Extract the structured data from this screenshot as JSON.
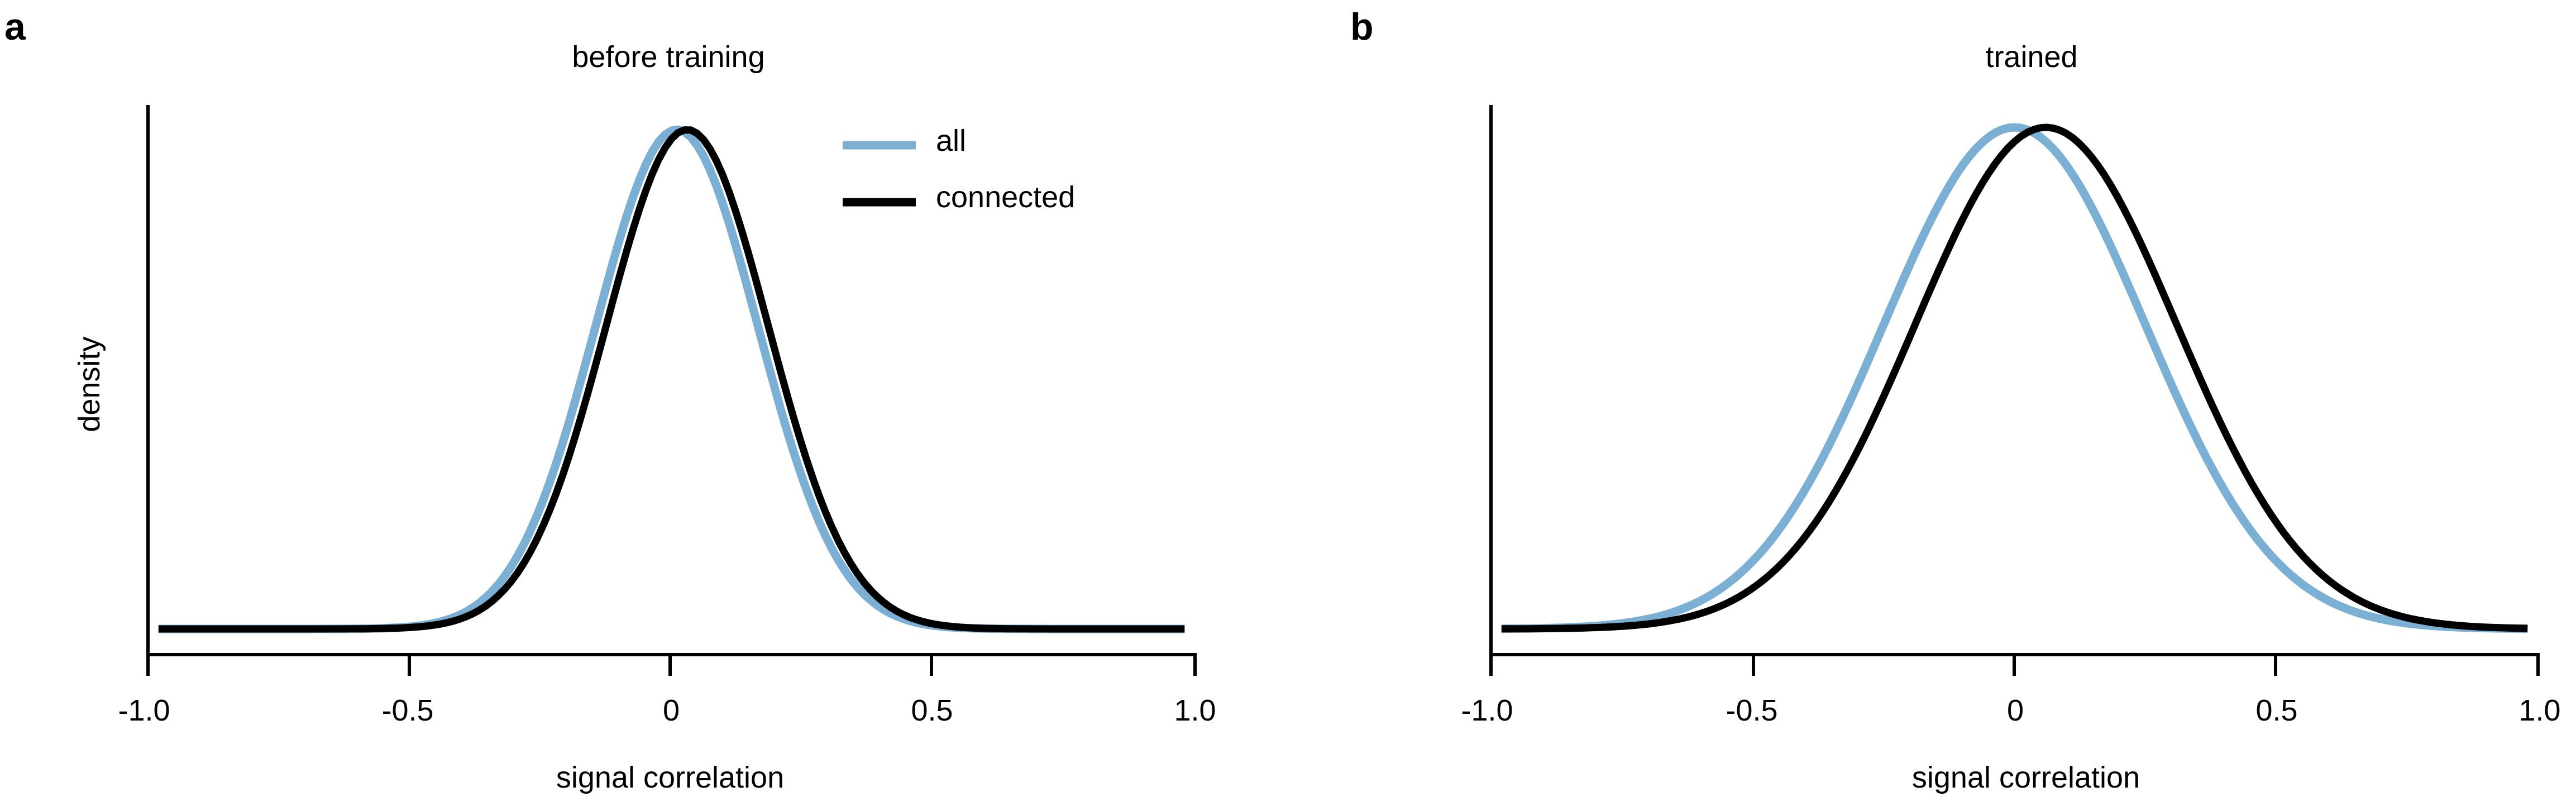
{
  "figure": {
    "panels": [
      {
        "letter": "a",
        "title": "before training",
        "xlabel": "signal correlation",
        "ylabel": "density",
        "xticks": [
          "-1.0",
          "-0.5",
          "0",
          "0.5",
          "1.0"
        ]
      },
      {
        "letter": "b",
        "title": "trained",
        "xlabel": "signal correlation",
        "ylabel": "",
        "xticks": [
          "-1.0",
          "-0.5",
          "0",
          "0.5",
          "1.0"
        ]
      }
    ],
    "legend": {
      "items": [
        {
          "label": "all",
          "color": "#7bafd4"
        },
        {
          "label": "connected",
          "color": "#000000"
        }
      ]
    }
  },
  "chart_data": [
    {
      "type": "line",
      "title": "before training",
      "panel": "a",
      "xlabel": "signal correlation",
      "ylabel": "density",
      "xlim": [
        -1.0,
        1.0
      ],
      "xticks": [
        -1.0,
        -0.5,
        0,
        0.5,
        1.0
      ],
      "yticks": [],
      "grid": false,
      "legend_position": "upper right",
      "x": [
        -0.98,
        -0.9,
        -0.8,
        -0.7,
        -0.6,
        -0.55,
        -0.5,
        -0.45,
        -0.4,
        -0.35,
        -0.3,
        -0.25,
        -0.2,
        -0.15,
        -0.1,
        -0.05,
        0.0,
        0.05,
        0.1,
        0.15,
        0.2,
        0.25,
        0.3,
        0.35,
        0.4,
        0.45,
        0.5,
        0.55,
        0.6,
        0.7,
        0.8,
        0.9,
        0.98
      ],
      "series": [
        {
          "name": "all",
          "color": "#7bafd4",
          "mean": 0.01,
          "sd": 0.155,
          "values": [
            0.0,
            0.0,
            0.0,
            0.0,
            0.0,
            0.004,
            0.009,
            0.028,
            0.06,
            0.12,
            0.22,
            0.35,
            0.5,
            0.66,
            0.82,
            0.94,
            1.0,
            0.97,
            0.87,
            0.72,
            0.56,
            0.4,
            0.26,
            0.15,
            0.08,
            0.038,
            0.016,
            0.006,
            0.002,
            0.0,
            0.0,
            0.0,
            0.0
          ]
        },
        {
          "name": "connected",
          "color": "#000000",
          "mean": 0.03,
          "sd": 0.155,
          "values": [
            0.0,
            0.0,
            0.0,
            0.0,
            0.0,
            0.003,
            0.007,
            0.02,
            0.05,
            0.1,
            0.19,
            0.3,
            0.45,
            0.61,
            0.77,
            0.91,
            0.98,
            1.0,
            0.93,
            0.8,
            0.64,
            0.47,
            0.32,
            0.19,
            0.1,
            0.05,
            0.022,
            0.009,
            0.003,
            0.0,
            0.0,
            0.0,
            0.0
          ]
        }
      ]
    },
    {
      "type": "line",
      "title": "trained",
      "panel": "b",
      "xlabel": "signal correlation",
      "ylabel": "",
      "xlim": [
        -1.0,
        1.0
      ],
      "xticks": [
        -1.0,
        -0.5,
        0,
        0.5,
        1.0
      ],
      "yticks": [],
      "grid": false,
      "x": [
        -0.98,
        -0.9,
        -0.8,
        -0.7,
        -0.6,
        -0.55,
        -0.5,
        -0.45,
        -0.4,
        -0.35,
        -0.3,
        -0.25,
        -0.2,
        -0.15,
        -0.1,
        -0.05,
        0.0,
        0.05,
        0.1,
        0.15,
        0.2,
        0.25,
        0.3,
        0.35,
        0.4,
        0.45,
        0.5,
        0.55,
        0.6,
        0.7,
        0.8,
        0.9,
        0.98
      ],
      "series": [
        {
          "name": "all",
          "color": "#7bafd4",
          "mean": 0.0,
          "sd": 0.25,
          "values": [
            0.0,
            0.003,
            0.01,
            0.025,
            0.07,
            0.11,
            0.16,
            0.23,
            0.31,
            0.41,
            0.52,
            0.63,
            0.74,
            0.84,
            0.92,
            0.98,
            1.0,
            0.98,
            0.92,
            0.84,
            0.74,
            0.63,
            0.52,
            0.41,
            0.31,
            0.23,
            0.16,
            0.11,
            0.07,
            0.025,
            0.01,
            0.003,
            0.0
          ]
        },
        {
          "name": "connected",
          "color": "#000000",
          "mean": 0.06,
          "sd": 0.25,
          "values": [
            0.0,
            0.002,
            0.006,
            0.015,
            0.045,
            0.075,
            0.11,
            0.165,
            0.235,
            0.315,
            0.41,
            0.51,
            0.62,
            0.73,
            0.83,
            0.91,
            0.97,
            1.0,
            0.99,
            0.95,
            0.87,
            0.78,
            0.67,
            0.56,
            0.45,
            0.34,
            0.25,
            0.18,
            0.12,
            0.05,
            0.018,
            0.005,
            0.0
          ]
        }
      ]
    }
  ]
}
